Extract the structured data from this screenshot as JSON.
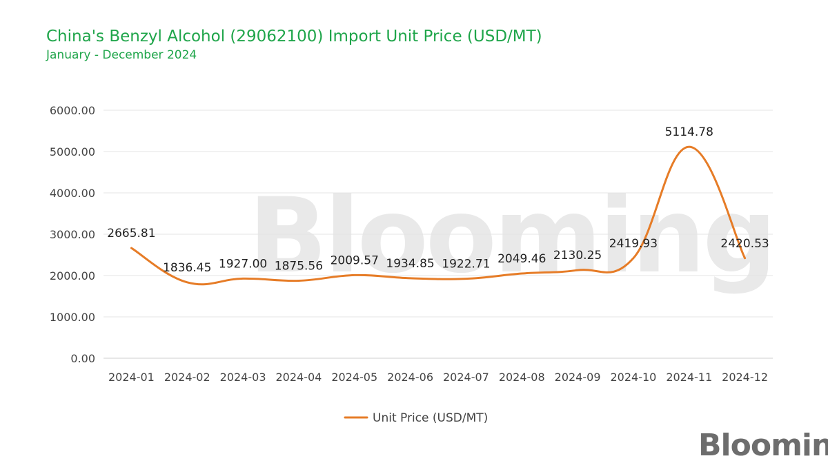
{
  "chart_data": {
    "type": "line",
    "title": "China's Benzyl Alcohol (29062100) Import Unit Price (USD/MT)",
    "subtitle": "January - December 2024",
    "categories": [
      "2024-01",
      "2024-02",
      "2024-03",
      "2024-04",
      "2024-05",
      "2024-06",
      "2024-07",
      "2024-08",
      "2024-09",
      "2024-10",
      "2024-11",
      "2024-12"
    ],
    "series": [
      {
        "name": "Unit Price (USD/MT)",
        "values": [
          2665.81,
          1836.45,
          1927.0,
          1875.56,
          2009.57,
          1934.85,
          1922.71,
          2049.46,
          2130.25,
          2419.93,
          5114.78,
          2420.53
        ],
        "labels": [
          "2665.81",
          "1836.45",
          "1927.00",
          "1875.56",
          "2009.57",
          "1934.85",
          "1922.71",
          "2049.46",
          "2130.25",
          "2419.93",
          "5114.78",
          "2420.53"
        ],
        "color": "#e67c27"
      }
    ],
    "yticks": [
      "0.00",
      "1000.00",
      "2000.00",
      "3000.00",
      "4000.00",
      "5000.00",
      "6000.00"
    ],
    "ylim": [
      0,
      6000
    ],
    "grid": true,
    "legend": "bottom-center"
  },
  "brand": {
    "logo": "Blooming",
    "watermark": "Blooming",
    "color": "#1fa54a"
  }
}
